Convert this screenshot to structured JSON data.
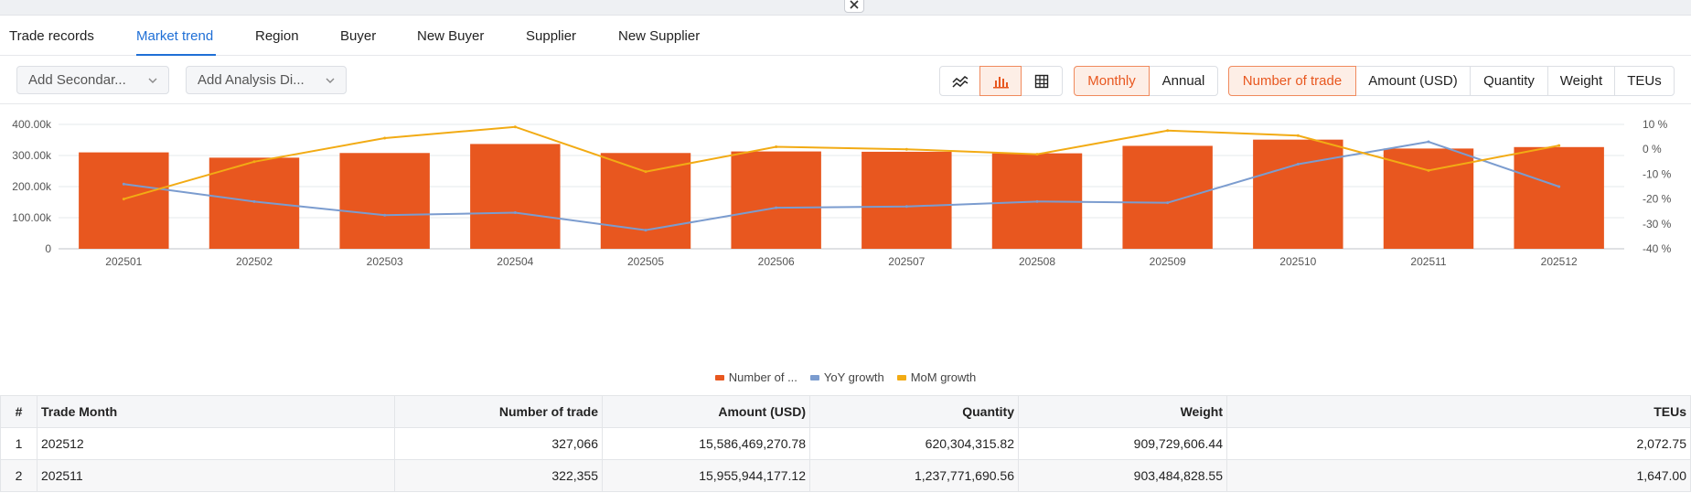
{
  "tabs": [
    {
      "label": "Trade records",
      "active": false
    },
    {
      "label": "Market trend",
      "active": true
    },
    {
      "label": "Region",
      "active": false
    },
    {
      "label": "Buyer",
      "active": false
    },
    {
      "label": "New Buyer",
      "active": false
    },
    {
      "label": "Supplier",
      "active": false
    },
    {
      "label": "New Supplier",
      "active": false
    }
  ],
  "toolbar": {
    "secondary_select": "Add Secondar...",
    "analysis_select": "Add Analysis Di...",
    "view_icons": [
      "line-chart-icon",
      "bar-chart-icon",
      "table-grid-icon"
    ],
    "active_view": "bar-chart-icon",
    "period_buttons": [
      "Monthly",
      "Annual"
    ],
    "active_period": "Monthly",
    "metric_buttons": [
      "Number of trade",
      "Amount (USD)",
      "Quantity",
      "Weight",
      "TEUs"
    ],
    "active_metric": "Number of trade"
  },
  "colors": {
    "bar": "#e8571f",
    "yoy": "#7b9ccf",
    "mom": "#f2ab14",
    "accent": "#1f6fd6"
  },
  "chart_data": {
    "type": "bar",
    "categories": [
      "202501",
      "202502",
      "202503",
      "202504",
      "202505",
      "202506",
      "202507",
      "202508",
      "202509",
      "202510",
      "202511",
      "202512"
    ],
    "series": [
      {
        "name": "Number of ...",
        "type": "bar",
        "axis": "left",
        "values": [
          310000,
          293000,
          308000,
          337000,
          308000,
          313000,
          312000,
          307000,
          331000,
          351000,
          322355,
          327066
        ]
      },
      {
        "name": "YoY growth",
        "type": "line",
        "axis": "right",
        "values": [
          -14,
          -21,
          -26.5,
          -25.5,
          -32.5,
          -23.5,
          -23,
          -21,
          -21.5,
          -6,
          3,
          -15
        ]
      },
      {
        "name": "MoM growth",
        "type": "line",
        "axis": "right",
        "values": [
          -20,
          -5,
          4.5,
          9,
          -9,
          1,
          0,
          -2,
          7.5,
          5.5,
          -8.5,
          1.5
        ]
      }
    ],
    "left_axis": {
      "ticks": [
        "0",
        "100.00k",
        "200.00k",
        "300.00k",
        "400.00k"
      ],
      "ylim": [
        0,
        400000
      ]
    },
    "right_axis": {
      "ticks": [
        "-40 %",
        "-30 %",
        "-20 %",
        "-10 %",
        "0 %",
        "10 %"
      ],
      "ylim": [
        -40,
        10
      ]
    },
    "grid": true,
    "legend_position": "bottom-center"
  },
  "table": {
    "headers": [
      "#",
      "Trade Month",
      "Number of trade",
      "Amount (USD)",
      "Quantity",
      "Weight",
      "TEUs"
    ],
    "rows": [
      [
        "1",
        "202512",
        "327,066",
        "15,586,469,270.78",
        "620,304,315.82",
        "909,729,606.44",
        "2,072.75"
      ],
      [
        "2",
        "202511",
        "322,355",
        "15,955,944,177.12",
        "1,237,771,690.56",
        "903,484,828.55",
        "1,647.00"
      ]
    ]
  }
}
